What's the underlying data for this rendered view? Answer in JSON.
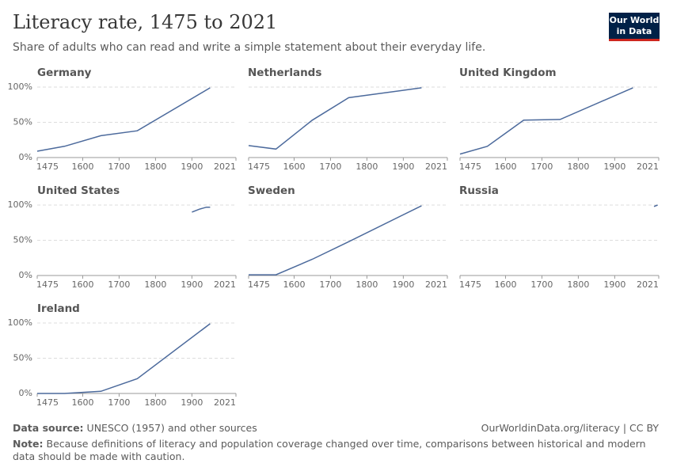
{
  "header": {
    "title": "Literacy rate, 1475 to 2021",
    "subtitle": "Share of adults who can read and write a simple statement about their everyday life.",
    "logo": [
      "Our World",
      "in Data"
    ]
  },
  "chart_data": [
    {
      "type": "line",
      "title": "Germany",
      "x": [
        1475,
        1550,
        1650,
        1750,
        1950
      ],
      "values": [
        9,
        16,
        31,
        38,
        99
      ],
      "color": "#4c6a9c",
      "xlim": [
        1475,
        2021
      ],
      "xticks": [
        1475,
        1600,
        1700,
        1800,
        1900,
        2021
      ],
      "ylim": [
        0,
        100
      ],
      "yticks": [
        {
          "value": 0,
          "label": "0%"
        },
        {
          "value": 50,
          "label": "50%"
        },
        {
          "value": 100,
          "label": "100%"
        }
      ],
      "grid": true
    },
    {
      "type": "line",
      "title": "Netherlands",
      "x": [
        1475,
        1550,
        1650,
        1750,
        1950
      ],
      "values": [
        17,
        12,
        53,
        85,
        99
      ],
      "color": "#4c6a9c",
      "xlim": [
        1475,
        2021
      ],
      "xticks": [
        1475,
        1600,
        1700,
        1800,
        1900,
        2021
      ],
      "ylim": [
        0,
        100
      ],
      "yticks": [
        0,
        50,
        100
      ],
      "grid": true
    },
    {
      "type": "line",
      "title": "United Kingdom",
      "x": [
        1475,
        1550,
        1650,
        1750,
        1950
      ],
      "values": [
        5,
        16,
        53,
        54,
        99
      ],
      "color": "#4c6a9c",
      "xlim": [
        1475,
        2021
      ],
      "xticks": [
        1475,
        1600,
        1700,
        1800,
        1900,
        2021
      ],
      "ylim": [
        0,
        100
      ],
      "yticks": [
        0,
        50,
        100
      ],
      "grid": true
    },
    {
      "type": "line",
      "title": "United States",
      "x": [
        1900,
        1920,
        1940,
        1950
      ],
      "values": [
        90,
        94,
        97,
        97
      ],
      "color": "#4c6a9c",
      "xlim": [
        1475,
        2021
      ],
      "xticks": [
        1475,
        1600,
        1700,
        1800,
        1900,
        2021
      ],
      "ylim": [
        0,
        100
      ],
      "yticks": [
        {
          "value": 0,
          "label": "0%"
        },
        {
          "value": 50,
          "label": "50%"
        },
        {
          "value": 100,
          "label": "100%"
        }
      ],
      "grid": true
    },
    {
      "type": "line",
      "title": "Sweden",
      "x": [
        1475,
        1550,
        1650,
        1750,
        1950
      ],
      "values": [
        1,
        1,
        23,
        48,
        99
      ],
      "color": "#4c6a9c",
      "xlim": [
        1475,
        2021
      ],
      "xticks": [
        1475,
        1600,
        1700,
        1800,
        1900,
        2021
      ],
      "ylim": [
        0,
        100
      ],
      "yticks": [
        0,
        50,
        100
      ],
      "grid": true
    },
    {
      "type": "line",
      "title": "Russia",
      "x": [
        2008,
        2018
      ],
      "values": [
        98,
        100
      ],
      "color": "#4c6a9c",
      "xlim": [
        1475,
        2021
      ],
      "xticks": [
        1475,
        1600,
        1700,
        1800,
        1900,
        2021
      ],
      "ylim": [
        0,
        100
      ],
      "yticks": [
        0,
        50,
        100
      ],
      "grid": true
    },
    {
      "type": "line",
      "title": "Ireland",
      "x": [
        1475,
        1550,
        1650,
        1750,
        1950
      ],
      "values": [
        0,
        0,
        3,
        21,
        99
      ],
      "color": "#4c6a9c",
      "xlim": [
        1475,
        2021
      ],
      "xticks": [
        1475,
        1600,
        1700,
        1800,
        1900,
        2021
      ],
      "ylim": [
        0,
        100
      ],
      "yticks": [
        {
          "value": 0,
          "label": "0%"
        },
        {
          "value": 50,
          "label": "50%"
        },
        {
          "value": 100,
          "label": "100%"
        }
      ],
      "grid": true
    }
  ],
  "footer": {
    "source_label": "Data source:",
    "source": "UNESCO (1957) and other sources",
    "link": "OurWorldinData.org/literacy | CC BY",
    "note_label": "Note:",
    "note": "Because definitions of literacy and population coverage changed over time, comparisons between historical and modern data should be made with caution."
  }
}
